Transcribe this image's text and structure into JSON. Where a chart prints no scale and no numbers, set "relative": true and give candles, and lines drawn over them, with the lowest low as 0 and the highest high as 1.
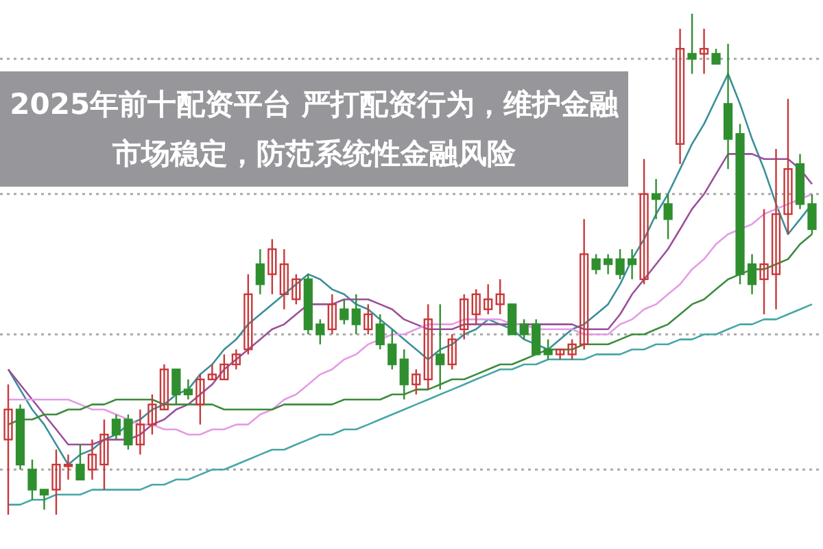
{
  "chart_data": {
    "type": "candlestick",
    "relative": true,
    "title": "2025年前十配资平台 严打配资行为，维护金融市场稳定，防范系统性金融风险",
    "categories": [
      null,
      null,
      null,
      null,
      null,
      null,
      null,
      null,
      null,
      null,
      null,
      null,
      null,
      null,
      null,
      null,
      null,
      null,
      null,
      null,
      null,
      null,
      null,
      null,
      null,
      null,
      null,
      null,
      null,
      null,
      null,
      null,
      null,
      null,
      null,
      null,
      null,
      null,
      null,
      null,
      null,
      null,
      null,
      null,
      null,
      null,
      null,
      null,
      null,
      null,
      null,
      null,
      null,
      null,
      null,
      null,
      null,
      null,
      null,
      null,
      null,
      null,
      null,
      null,
      null,
      null,
      null,
      null
    ],
    "ohlc": [
      [
        0.15,
        0.26,
        0,
        0.21
      ],
      [
        0.21,
        0.22,
        0.09,
        0.1
      ],
      [
        0.09,
        0.11,
        0.03,
        0.05
      ],
      [
        0.05,
        0.05,
        0.01,
        0.04
      ],
      [
        0.05,
        0.13,
        0,
        0.1
      ],
      [
        0.1,
        0.12,
        0.07,
        0.1
      ],
      [
        0.1,
        0.14,
        0.07,
        0.07
      ],
      [
        0.09,
        0.15,
        0.07,
        0.12
      ],
      [
        0.1,
        0.19,
        0.05,
        0.16
      ],
      [
        0.19,
        0.2,
        0.15,
        0.16
      ],
      [
        0.19,
        0.2,
        0.13,
        0.14
      ],
      [
        0.14,
        0.21,
        0.12,
        0.18
      ],
      [
        0.18,
        0.24,
        0.16,
        0.22
      ],
      [
        0.21,
        0.3,
        0.21,
        0.29
      ],
      [
        0.29,
        0.29,
        0.22,
        0.24
      ],
      [
        0.25,
        0.27,
        0.23,
        0.24
      ],
      [
        0.22,
        0.28,
        0.18,
        0.27
      ],
      [
        0.27,
        0.3,
        0.27,
        0.28
      ],
      [
        0.27,
        0.32,
        0.27,
        0.3
      ],
      [
        0.3,
        0.33,
        0.29,
        0.32
      ],
      [
        0.33,
        0.48,
        0.32,
        0.44
      ],
      [
        0.5,
        0.53,
        0.44,
        0.46
      ],
      [
        0.48,
        0.55,
        0.44,
        0.53
      ],
      [
        0.44,
        0.53,
        0.41,
        0.5
      ],
      [
        0.43,
        0.48,
        0.42,
        0.47
      ],
      [
        0.47,
        0.48,
        0.36,
        0.37
      ],
      [
        0.38,
        0.39,
        0.34,
        0.36
      ],
      [
        0.37,
        0.44,
        0.36,
        0.42
      ],
      [
        0.41,
        0.43,
        0.38,
        0.39
      ],
      [
        0.41,
        0.44,
        0.36,
        0.38
      ],
      [
        0.37,
        0.42,
        0.36,
        0.4
      ],
      [
        0.38,
        0.4,
        0.33,
        0.34
      ],
      [
        0.34,
        0.37,
        0.29,
        0.3
      ],
      [
        0.31,
        0.33,
        0.23,
        0.26
      ],
      [
        0.26,
        0.29,
        0.24,
        0.28
      ],
      [
        0.27,
        0.42,
        0.25,
        0.39
      ],
      [
        0.32,
        0.42,
        0.25,
        0.3
      ],
      [
        0.3,
        0.36,
        0.29,
        0.35
      ],
      [
        0.37,
        0.44,
        0.35,
        0.43
      ],
      [
        0.4,
        0.45,
        0.38,
        0.44
      ],
      [
        0.41,
        0.46,
        0.4,
        0.43
      ],
      [
        0.42,
        0.47,
        0.4,
        0.44
      ],
      [
        0.42,
        0.42,
        0.36,
        0.36
      ],
      [
        0.38,
        0.39,
        0.35,
        0.36
      ],
      [
        0.38,
        0.39,
        0.32,
        0.32
      ],
      [
        0.33,
        0.35,
        0.31,
        0.32
      ],
      [
        0.32,
        0.33,
        0.31,
        0.33
      ],
      [
        0.32,
        0.35,
        0.31,
        0.34
      ],
      [
        0.34,
        0.59,
        0.33,
        0.52
      ],
      [
        0.51,
        0.52,
        0.48,
        0.49
      ],
      [
        0.51,
        0.52,
        0.48,
        0.5
      ],
      [
        0.51,
        0.53,
        0.47,
        0.48
      ],
      [
        0.51,
        0.53,
        0.47,
        0.5
      ],
      [
        0.47,
        0.71,
        0.46,
        0.64
      ],
      [
        0.64,
        0.67,
        0.59,
        0.63
      ],
      [
        0.62,
        0.64,
        0.55,
        0.59
      ],
      [
        0.74,
        0.97,
        0.7,
        0.93
      ],
      [
        0.92,
        1,
        0.88,
        0.91
      ],
      [
        0.92,
        0.97,
        0.88,
        0.93
      ],
      [
        0.92,
        0.93,
        0.9,
        0.9
      ],
      [
        0.82,
        0.94,
        0.69,
        0.75
      ],
      [
        0.76,
        0.78,
        0.46,
        0.48
      ],
      [
        0.5,
        0.52,
        0.44,
        0.46
      ],
      [
        0.47,
        0.61,
        0.4,
        0.5
      ],
      [
        0.48,
        0.73,
        0.41,
        0.6
      ],
      [
        0.6,
        0.83,
        0.56,
        0.69
      ],
      [
        0.7,
        0.72,
        0.61,
        0.62
      ],
      [
        0.62,
        0.64,
        0.56,
        0.57
      ]
    ],
    "series": [
      {
        "type": "line",
        "color": "#3a8f99",
        "values": [
          0.29,
          0.25,
          0.21,
          0.18,
          0.14,
          0.1,
          0.12,
          0.13,
          0.15,
          0.16,
          0.18,
          0.19,
          0.21,
          0.22,
          0.24,
          0.25,
          0.28,
          0.3,
          0.33,
          0.35,
          0.38,
          0.4,
          0.42,
          0.44,
          0.46,
          0.48,
          0.47,
          0.45,
          0.44,
          0.42,
          0.41,
          0.39,
          0.37,
          0.35,
          0.33,
          0.31,
          0.33,
          0.34,
          0.36,
          0.37,
          0.39,
          0.38,
          0.37,
          0.35,
          0.34,
          0.33,
          0.35,
          0.37,
          0.38,
          0.4,
          0.42,
          0.46,
          0.51,
          0.55,
          0.6,
          0.64,
          0.69,
          0.74,
          0.78,
          0.83,
          0.88,
          0.82,
          0.75,
          0.69,
          0.62,
          0.56,
          0.59,
          0.62
        ]
      },
      {
        "type": "line",
        "color": "#9b4f9b",
        "values": [
          0.29,
          0.26,
          0.23,
          0.2,
          0.17,
          0.14,
          0.14,
          0.14,
          0.15,
          0.15,
          0.15,
          0.16,
          0.18,
          0.19,
          0.21,
          0.22,
          0.24,
          0.26,
          0.29,
          0.31,
          0.33,
          0.35,
          0.37,
          0.38,
          0.4,
          0.42,
          0.42,
          0.42,
          0.43,
          0.43,
          0.43,
          0.42,
          0.41,
          0.39,
          0.38,
          0.37,
          0.37,
          0.37,
          0.38,
          0.38,
          0.38,
          0.38,
          0.38,
          0.38,
          0.38,
          0.38,
          0.38,
          0.38,
          0.37,
          0.37,
          0.37,
          0.4,
          0.44,
          0.47,
          0.5,
          0.53,
          0.57,
          0.61,
          0.64,
          0.68,
          0.72,
          0.72,
          0.72,
          0.71,
          0.71,
          0.71,
          0.69,
          0.66
        ]
      },
      {
        "type": "line",
        "color": "#e59be5",
        "values": [
          0.23,
          0.23,
          0.23,
          0.23,
          0.23,
          0.23,
          0.22,
          0.21,
          0.21,
          0.2,
          0.19,
          0.18,
          0.18,
          0.17,
          0.17,
          0.16,
          0.16,
          0.17,
          0.17,
          0.18,
          0.18,
          0.2,
          0.21,
          0.23,
          0.24,
          0.26,
          0.28,
          0.29,
          0.31,
          0.32,
          0.34,
          0.35,
          0.36,
          0.36,
          0.37,
          0.38,
          0.38,
          0.38,
          0.39,
          0.39,
          0.39,
          0.39,
          0.38,
          0.38,
          0.37,
          0.37,
          0.37,
          0.37,
          0.36,
          0.36,
          0.36,
          0.38,
          0.39,
          0.41,
          0.42,
          0.44,
          0.46,
          0.49,
          0.51,
          0.54,
          0.56,
          0.57,
          0.58,
          0.6,
          0.61,
          0.62,
          0.63,
          0.64
        ]
      },
      {
        "type": "line",
        "color": "#3d8b3d",
        "values": [
          0.18,
          0.19,
          0.19,
          0.2,
          0.2,
          0.21,
          0.21,
          0.22,
          0.22,
          0.23,
          0.23,
          0.23,
          0.23,
          0.22,
          0.22,
          0.22,
          0.22,
          0.22,
          0.21,
          0.21,
          0.21,
          0.21,
          0.21,
          0.22,
          0.22,
          0.22,
          0.22,
          0.22,
          0.23,
          0.23,
          0.23,
          0.23,
          0.24,
          0.24,
          0.25,
          0.25,
          0.26,
          0.27,
          0.27,
          0.28,
          0.29,
          0.3,
          0.3,
          0.31,
          0.32,
          0.33,
          0.33,
          0.33,
          0.34,
          0.34,
          0.34,
          0.35,
          0.36,
          0.36,
          0.37,
          0.38,
          0.4,
          0.42,
          0.43,
          0.45,
          0.47,
          0.48,
          0.49,
          0.49,
          0.5,
          0.51,
          0.54,
          0.56
        ]
      },
      {
        "type": "line",
        "color": "#46a6a6",
        "values": [
          0.02,
          0.02,
          0.03,
          0.03,
          0.04,
          0.04,
          0.04,
          0.05,
          0.05,
          0.05,
          0.05,
          0.05,
          0.06,
          0.06,
          0.07,
          0.07,
          0.08,
          0.09,
          0.09,
          0.1,
          0.11,
          0.12,
          0.13,
          0.13,
          0.14,
          0.15,
          0.16,
          0.16,
          0.17,
          0.17,
          0.18,
          0.19,
          0.2,
          0.21,
          0.22,
          0.23,
          0.24,
          0.25,
          0.26,
          0.27,
          0.28,
          0.29,
          0.29,
          0.3,
          0.3,
          0.31,
          0.31,
          0.31,
          0.31,
          0.32,
          0.32,
          0.32,
          0.33,
          0.33,
          0.34,
          0.34,
          0.35,
          0.35,
          0.36,
          0.36,
          0.37,
          0.38,
          0.38,
          0.39,
          0.39,
          0.4,
          0.41,
          0.42
        ]
      }
    ],
    "ref_lines": [
      {
        "axis": "y",
        "value": 0.91,
        "color": "#aaaaaa",
        "line_style": "dotted"
      },
      {
        "axis": "y",
        "value": 0.64,
        "color": "#aaaaaa",
        "line_style": "dotted"
      },
      {
        "axis": "y",
        "value": 0.36,
        "color": "#aaaaaa",
        "line_style": "dotted"
      },
      {
        "axis": "y",
        "value": 0.09,
        "color": "#aaaaaa",
        "line_style": "dotted"
      }
    ]
  }
}
